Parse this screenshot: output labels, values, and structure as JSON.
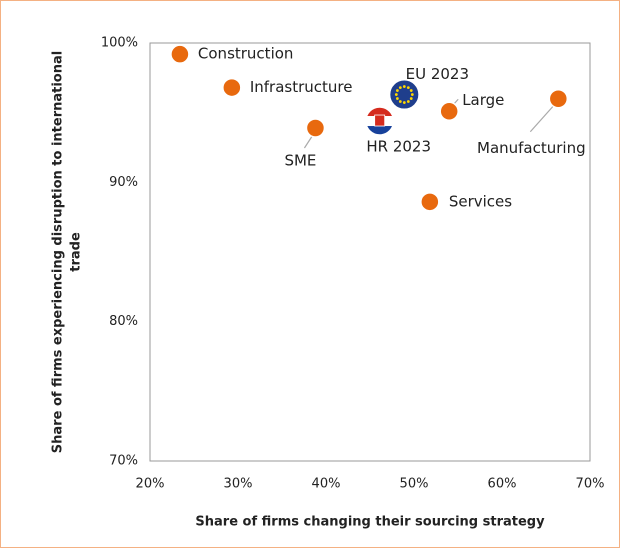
{
  "chart_data": {
    "type": "scatter",
    "xlabel": "Share of firms changing their sourcing strategy",
    "ylabel": [
      "Share of firms experiencing disruption to international",
      "trade"
    ],
    "color": "#E8690E",
    "points": [
      {
        "name": "Construction",
        "x": 23.4,
        "y": 99.2
      },
      {
        "name": "Infrastructure",
        "x": 29.3,
        "y": 96.8
      },
      {
        "name": "SME",
        "x": 38.8,
        "y": 93.9
      },
      {
        "name": "HR 2023",
        "x": 46.1,
        "y": 94.4
      },
      {
        "name": "EU 2023",
        "x": 48.9,
        "y": 96.3
      },
      {
        "name": "Large",
        "x": 54.0,
        "y": 95.1
      },
      {
        "name": "Manufacturing",
        "x": 66.4,
        "y": 96.0
      },
      {
        "name": "Services",
        "x": 51.8,
        "y": 88.6
      }
    ],
    "xlim": [
      20,
      70
    ],
    "xticks": [
      {
        "value": 20,
        "label": "20%"
      },
      {
        "value": 30,
        "label": "30%"
      },
      {
        "value": 40,
        "label": "40%"
      },
      {
        "value": 50,
        "label": "50%"
      },
      {
        "value": 60,
        "label": "60%"
      },
      {
        "value": 70,
        "label": "70%"
      }
    ],
    "ylim": [
      70,
      100
    ],
    "yticks": [
      {
        "value": 70,
        "label": "70%"
      },
      {
        "value": 80,
        "label": "80%"
      },
      {
        "value": 90,
        "label": "90%"
      },
      {
        "value": 100,
        "label": "100%"
      }
    ]
  }
}
